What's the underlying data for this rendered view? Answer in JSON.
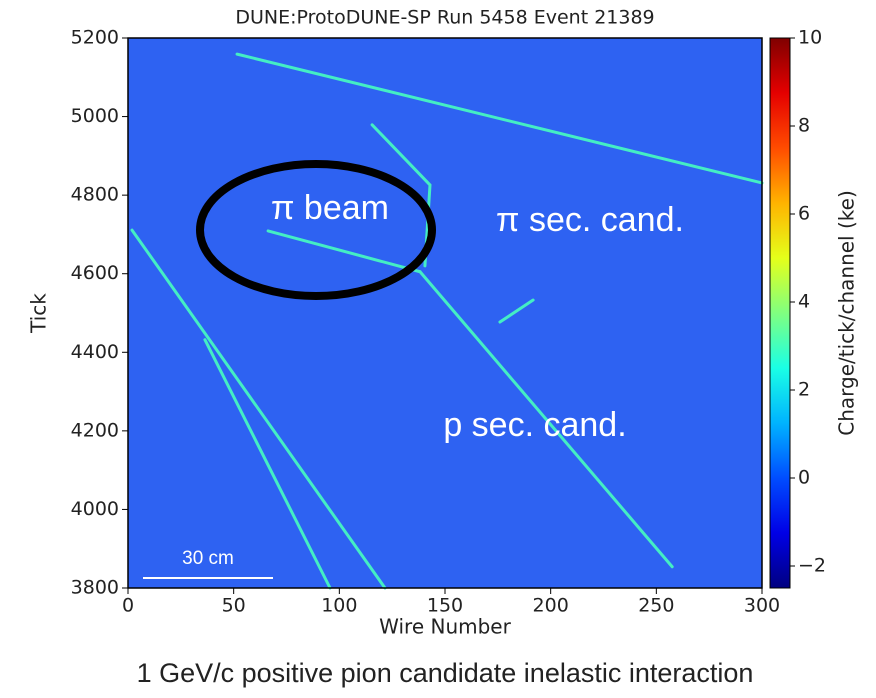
{
  "chart_data": {
    "type": "event-display",
    "title": "DUNE:ProtoDUNE-SP Run 5458 Event 21389",
    "x_label": "Wire Number",
    "y_label": "Tick",
    "xlim": [
      0,
      300
    ],
    "xticks": [
      0,
      50,
      100,
      150,
      200,
      250,
      300
    ],
    "ylim": [
      3800,
      5200
    ],
    "yticks": [
      3800,
      4000,
      4200,
      4400,
      4600,
      4800,
      5000,
      5200
    ],
    "colormap": "jet",
    "background_color": "#2e62f2",
    "track_color": "#44eec4",
    "colorbar_label": "Charge/tick/channel (ke)",
    "clim": [
      -2.5,
      10
    ],
    "colorbar_ticks": [
      {
        "value": -2,
        "label": "−2"
      },
      0,
      2,
      4,
      6,
      8,
      10
    ],
    "tracks": [
      {
        "x": [
          51.6,
          300
        ],
        "y": [
          5159,
          4831
        ]
      },
      {
        "x": [
          66.3,
          138.2
        ],
        "y": [
          4709,
          4605
        ]
      },
      {
        "x": [
          138.2,
          257.5
        ],
        "y": [
          4605,
          3854
        ]
      },
      {
        "x": [
          1.9,
          121.6
        ],
        "y": [
          4711,
          3800
        ]
      },
      {
        "x": [
          36.4,
          95.6
        ],
        "y": [
          4432,
          3800
        ]
      },
      {
        "x": [
          115.5,
          142.9,
          140.5
        ],
        "y": [
          4979,
          4826,
          4620
        ]
      },
      {
        "x": [
          176,
          191.7
        ],
        "y": [
          4477,
          4533
        ]
      }
    ],
    "annotations": [
      "π beam",
      "π sec. cand.",
      "p sec. cand.",
      "30 cm"
    ],
    "caption": "1 GeV/c positive pion candidate inelastic interaction"
  }
}
